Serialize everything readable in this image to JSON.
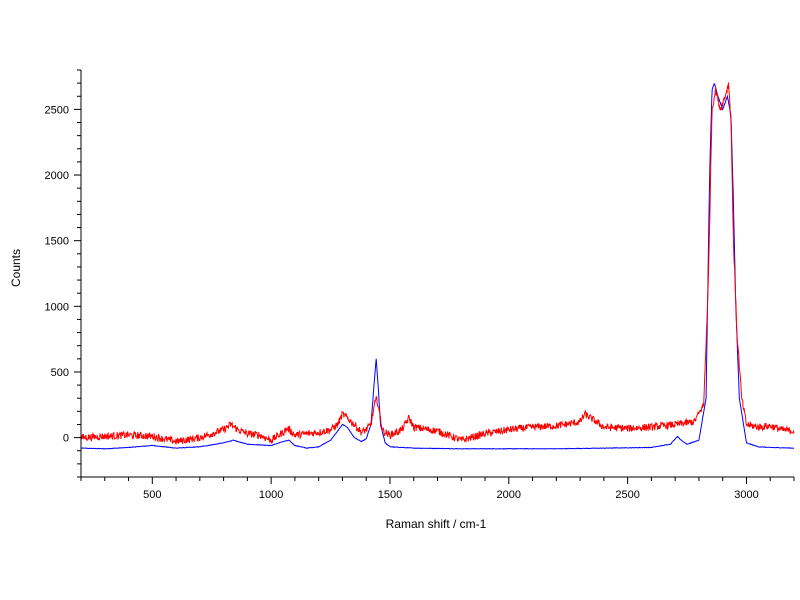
{
  "chart_data": {
    "type": "line",
    "title": "",
    "xlabel": "Raman shift / cm-1",
    "ylabel": "Counts",
    "xlim": [
      200,
      3200
    ],
    "ylim": [
      -300,
      2800
    ],
    "x_ticks": [
      500,
      1000,
      1500,
      2000,
      2500,
      3000
    ],
    "y_ticks": [
      0,
      500,
      1000,
      1500,
      2000,
      2500
    ],
    "grid": false,
    "legend": "none",
    "series": [
      {
        "color": "#0000ff",
        "x": [
          200,
          300,
          400,
          500,
          600,
          700,
          800,
          840,
          900,
          1000,
          1050,
          1075,
          1100,
          1150,
          1200,
          1250,
          1280,
          1300,
          1320,
          1350,
          1380,
          1400,
          1420,
          1435,
          1442,
          1450,
          1460,
          1480,
          1500,
          1600,
          1800,
          2000,
          2200,
          2400,
          2600,
          2680,
          2710,
          2725,
          2750,
          2800,
          2830,
          2845,
          2855,
          2865,
          2880,
          2900,
          2920,
          2935,
          2945,
          2955,
          2970,
          3000,
          3050,
          3100,
          3200
        ],
        "y": [
          -80,
          -85,
          -75,
          -60,
          -80,
          -70,
          -40,
          -20,
          -50,
          -60,
          -30,
          -20,
          -60,
          -80,
          -70,
          -20,
          50,
          100,
          80,
          0,
          -30,
          -10,
          100,
          450,
          600,
          400,
          100,
          -40,
          -70,
          -80,
          -85,
          -85,
          -85,
          -80,
          -75,
          -50,
          10,
          -20,
          -50,
          -20,
          300,
          2000,
          2650,
          2700,
          2600,
          2500,
          2600,
          2450,
          1800,
          1000,
          300,
          -40,
          -70,
          -75,
          -80
        ]
      },
      {
        "color": "#ff0000",
        "x": [
          200,
          300,
          400,
          500,
          600,
          700,
          800,
          830,
          860,
          900,
          950,
          1000,
          1050,
          1070,
          1100,
          1150,
          1200,
          1250,
          1280,
          1300,
          1320,
          1350,
          1380,
          1400,
          1420,
          1435,
          1445,
          1455,
          1470,
          1500,
          1550,
          1580,
          1600,
          1700,
          1800,
          1900,
          2000,
          2100,
          2200,
          2300,
          2320,
          2400,
          2500,
          2600,
          2700,
          2780,
          2820,
          2840,
          2855,
          2870,
          2890,
          2910,
          2925,
          2935,
          2945,
          2960,
          2980,
          3000,
          3050,
          3100,
          3150,
          3200
        ],
        "y": [
          0,
          10,
          20,
          10,
          -30,
          0,
          60,
          100,
          60,
          30,
          20,
          -20,
          40,
          70,
          20,
          30,
          40,
          60,
          100,
          180,
          150,
          100,
          40,
          60,
          100,
          250,
          300,
          200,
          50,
          20,
          60,
          150,
          80,
          50,
          -20,
          30,
          60,
          80,
          90,
          120,
          180,
          80,
          70,
          80,
          100,
          120,
          250,
          1200,
          2500,
          2650,
          2500,
          2600,
          2700,
          2400,
          1500,
          800,
          300,
          100,
          80,
          90,
          60,
          50
        ]
      }
    ]
  }
}
